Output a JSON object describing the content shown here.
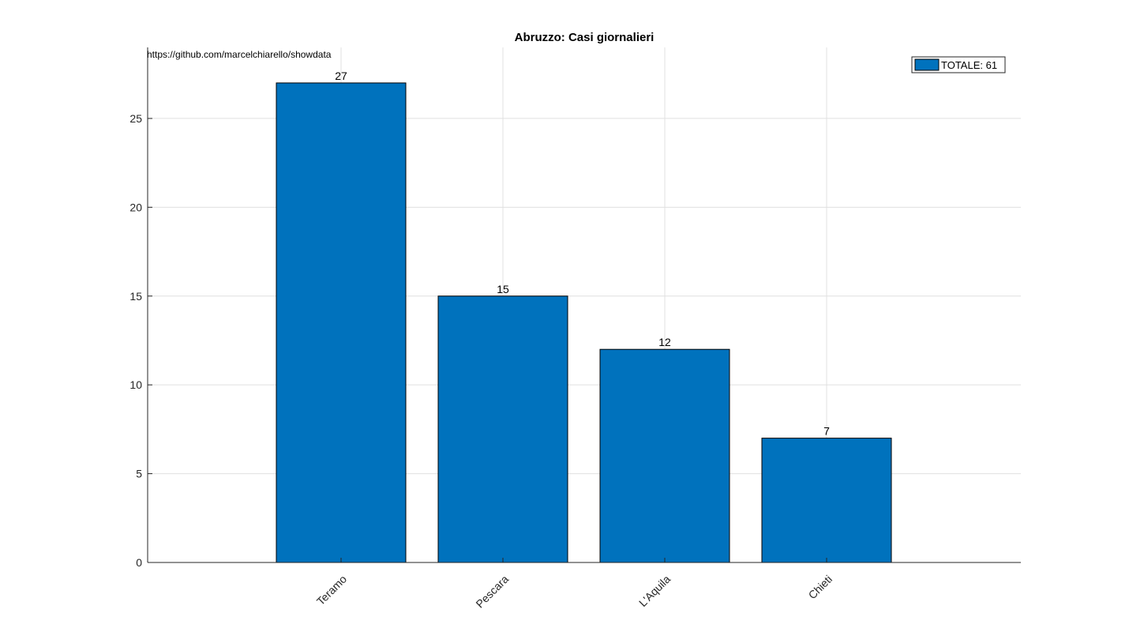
{
  "chart_data": {
    "type": "bar",
    "title": "Abruzzo: Casi giornalieri",
    "source_text": "https://github.com/marcelchiarello/showdata",
    "categories": [
      "Teramo",
      "Pescara",
      "L'Aquila",
      "Chieti"
    ],
    "values": [
      27,
      15,
      12,
      7
    ],
    "data_labels": [
      "27",
      "15",
      "12",
      "7"
    ],
    "yticks": [
      0,
      5,
      10,
      15,
      20,
      25
    ],
    "ylim": [
      0,
      29
    ],
    "grid": true,
    "legend": {
      "entries": [
        "TOTALE: 61"
      ],
      "position": "top-right"
    },
    "bar_color": "#0072BD"
  }
}
